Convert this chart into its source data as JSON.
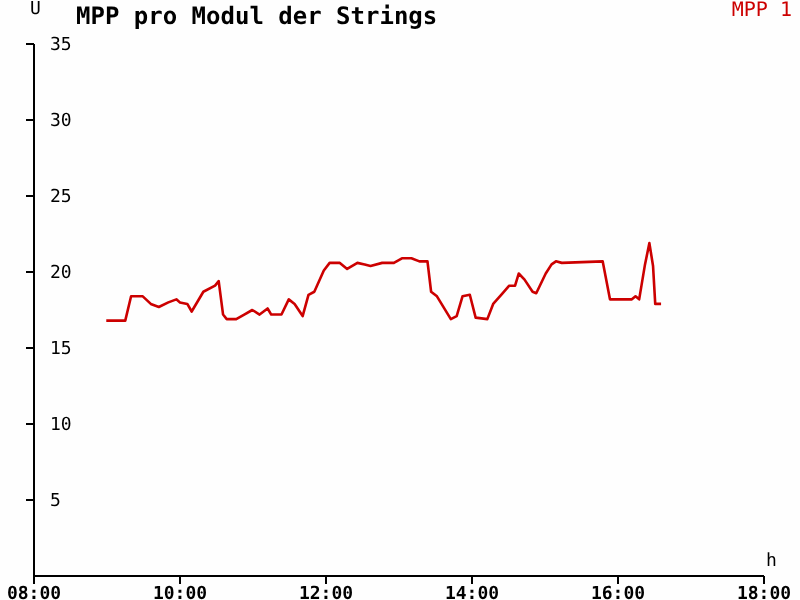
{
  "chart_data": {
    "type": "line",
    "title": "MPP pro Modul der Strings",
    "xlabel": "h",
    "ylabel": "U",
    "legend": "top right",
    "marker": "none",
    "line_style": "solid",
    "xlim": [
      8,
      18
    ],
    "xticks": [
      {
        "value": 8,
        "label": "08:00"
      },
      {
        "value": 10,
        "label": "10:00"
      },
      {
        "value": 12,
        "label": "12:00"
      },
      {
        "value": 14,
        "label": "14:00"
      },
      {
        "value": 16,
        "label": "16:00"
      },
      {
        "value": 18,
        "label": "18:00"
      }
    ],
    "ylim": [
      0,
      35
    ],
    "yticks": [
      5,
      10,
      15,
      20,
      25,
      30,
      35
    ],
    "series": [
      {
        "name": "MPP 1",
        "color": "#cc0000",
        "x": [
          8.99,
          9.25,
          9.33,
          9.49,
          9.6,
          9.71,
          9.84,
          9.95,
          10.0,
          10.1,
          10.16,
          10.32,
          10.48,
          10.53,
          10.59,
          10.64,
          10.77,
          10.88,
          10.99,
          11.09,
          11.2,
          11.25,
          11.39,
          11.49,
          11.57,
          11.68,
          11.76,
          11.84,
          11.97,
          12.05,
          12.19,
          12.29,
          12.43,
          12.53,
          12.61,
          12.77,
          12.93,
          13.04,
          13.17,
          13.28,
          13.39,
          13.44,
          13.52,
          13.71,
          13.79,
          13.87,
          13.97,
          14.05,
          14.21,
          14.29,
          14.4,
          14.51,
          14.59,
          14.64,
          14.72,
          14.83,
          14.88,
          15.01,
          15.09,
          15.15,
          15.23,
          15.79,
          15.89,
          16.19,
          16.24,
          16.29,
          16.37,
          16.43,
          16.48,
          16.51,
          16.59
        ],
        "values": [
          16.8,
          16.8,
          18.4,
          18.4,
          17.9,
          17.7,
          18.0,
          18.2,
          18.0,
          17.9,
          17.4,
          18.7,
          19.1,
          19.4,
          17.2,
          16.9,
          16.9,
          17.2,
          17.5,
          17.2,
          17.6,
          17.2,
          17.2,
          18.2,
          17.9,
          17.1,
          18.5,
          18.7,
          20.1,
          20.6,
          20.6,
          20.2,
          20.6,
          20.5,
          20.4,
          20.6,
          20.6,
          20.9,
          20.9,
          20.7,
          20.7,
          18.7,
          18.4,
          16.9,
          17.1,
          18.4,
          18.5,
          17.0,
          16.9,
          17.9,
          18.5,
          19.1,
          19.1,
          19.9,
          19.5,
          18.7,
          18.6,
          19.9,
          20.5,
          20.7,
          20.6,
          20.7,
          18.2,
          18.2,
          18.4,
          18.2,
          20.5,
          21.9,
          20.4,
          17.9,
          17.9
        ]
      }
    ]
  }
}
